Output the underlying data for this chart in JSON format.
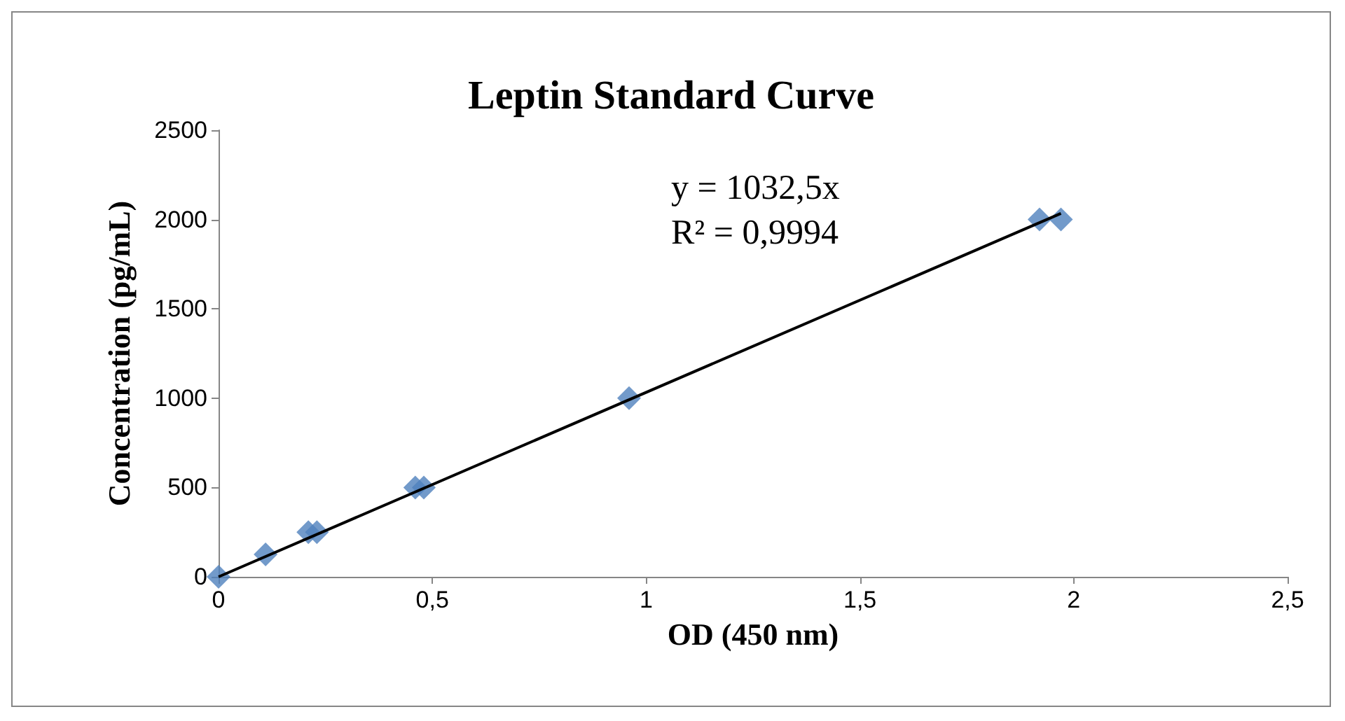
{
  "chart_data": {
    "type": "scatter",
    "title": "Leptin Standard Curve",
    "xlabel": "OD (450 nm)",
    "ylabel": "Concentration (pg/mL)",
    "x": [
      0,
      0.11,
      0.21,
      0.23,
      0.46,
      0.48,
      0.96,
      1.92,
      1.97
    ],
    "series": [
      {
        "color": "#4f81bd",
        "values": [
          0,
          125,
          250,
          250,
          500,
          500,
          1000,
          2000,
          2000
        ],
        "marker": "diamond"
      },
      {
        "type": "line",
        "color": "#000000",
        "x": [
          0,
          1.97
        ],
        "values": [
          0,
          2034
        ],
        "marker": "none",
        "line_style": "solid"
      }
    ],
    "xlim": [
      0,
      2.5
    ],
    "xticks": [
      0,
      {
        "value": 0.5,
        "label": "0,5"
      },
      1,
      {
        "value": 1.5,
        "label": "1,5"
      },
      2,
      {
        "value": 2.5,
        "label": "2,5"
      }
    ],
    "ylim": [
      0,
      2500
    ],
    "yticks": [
      0,
      500,
      1000,
      1500,
      2000,
      2500
    ],
    "annotations": [
      "y = 1032,5x",
      "R² = 0,9994"
    ],
    "grid": false
  }
}
